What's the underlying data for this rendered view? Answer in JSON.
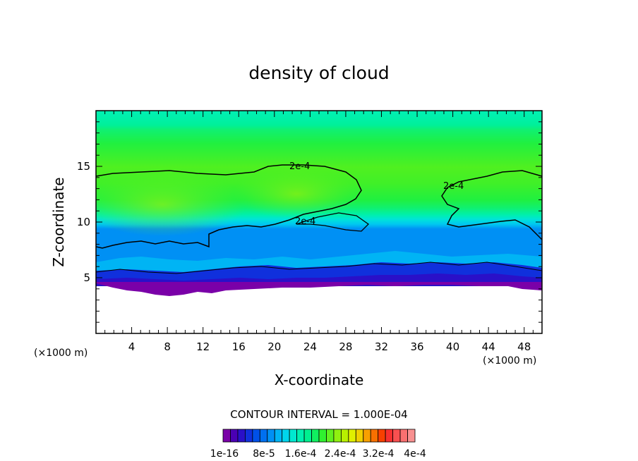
{
  "chart_data": {
    "type": "heatmap",
    "title": "density of cloud",
    "xlabel": "X-coordinate",
    "ylabel": "Z-coordinate",
    "x_unit": "(×1000 m)",
    "y_unit": "(×1000 m)",
    "xlim": [
      0,
      50
    ],
    "ylim": [
      0,
      20
    ],
    "x_ticks": [
      4,
      8,
      12,
      16,
      20,
      24,
      28,
      32,
      36,
      40,
      44,
      48
    ],
    "y_ticks": [
      5,
      10,
      15
    ],
    "contour_interval_text": "CONTOUR INTERVAL = 1.000E-04",
    "contour_labels": [
      "2e-4",
      "2e-4",
      "2e-4"
    ],
    "colorbar": {
      "tick_labels": [
        "1e-16",
        "8e-5",
        "1.6e-4",
        "2.4e-4",
        "3.2e-4",
        "4e-4"
      ],
      "colors": [
        "#7a00a8",
        "#4b00b4",
        "#2a10c8",
        "#1030dc",
        "#0050e8",
        "#0070f0",
        "#0090f4",
        "#00b4f4",
        "#00d4ec",
        "#00e8d0",
        "#00f0b0",
        "#00f090",
        "#10f060",
        "#30f030",
        "#60f020",
        "#90f010",
        "#b8f000",
        "#e0f000",
        "#f0d000",
        "#f8a000",
        "#f87000",
        "#f84000",
        "#f83030",
        "#f85050",
        "#f87070",
        "#f89090"
      ]
    },
    "bands": [
      {
        "z_range": [
          19,
          20
        ],
        "approx_value": "1.8e-4"
      },
      {
        "z_range": [
          17.5,
          19
        ],
        "approx_value": "1.9e-4"
      },
      {
        "z_range": [
          8,
          17.5
        ],
        "approx_value": "2.0e-4 to 2.4e-4"
      },
      {
        "z_range": [
          6.5,
          8
        ],
        "approx_value": "1.2e-4 to 1.6e-4"
      },
      {
        "z_range": [
          5,
          6.5
        ],
        "approx_value": "5e-5 to 1e-4"
      },
      {
        "z_range": [
          3.7,
          5
        ],
        "approx_value": "1e-16 to 4e-5"
      },
      {
        "z_range": [
          0,
          3.7
        ],
        "approx_value": "none"
      }
    ]
  }
}
